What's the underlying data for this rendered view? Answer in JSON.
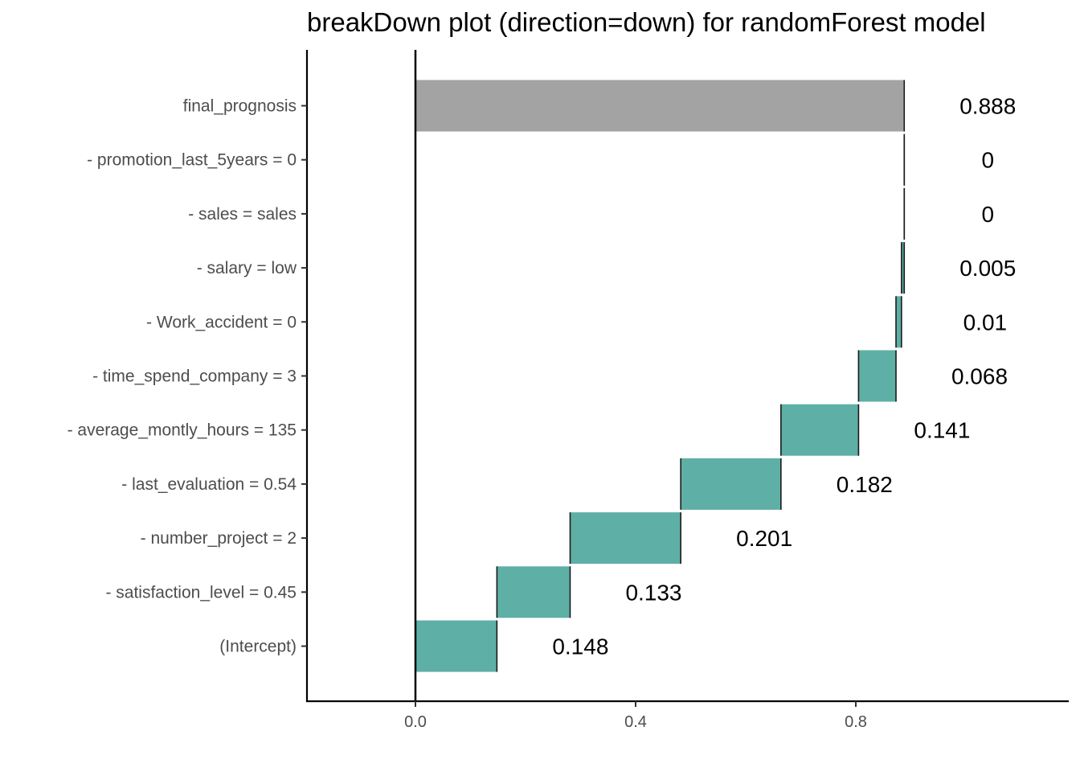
{
  "chart_data": {
    "type": "bar",
    "title": "breakDown plot  (direction=down) for randomForest model",
    "xlabel": "",
    "ylabel": "",
    "xlim": [
      -0.2,
      1.185
    ],
    "xticks": [
      0.0,
      0.4,
      0.8
    ],
    "xtick_labels": [
      "0.0",
      "0.4",
      "0.8"
    ],
    "grid": false,
    "baseline": 0,
    "bars": [
      {
        "label": "final_prognosis",
        "start": 0,
        "end": 0.888,
        "value_label": "0.888",
        "color": "#a3a3a3"
      },
      {
        "label": "- promotion_last_5years = 0",
        "start": 0.888,
        "end": 0.888,
        "value_label": "0",
        "color": "#5eafa6"
      },
      {
        "label": "- sales = sales",
        "start": 0.888,
        "end": 0.888,
        "value_label": "0",
        "color": "#5eafa6"
      },
      {
        "label": "- salary = low",
        "start": 0.883,
        "end": 0.888,
        "value_label": "0.005",
        "color": "#5eafa6"
      },
      {
        "label": "- Work_accident = 0",
        "start": 0.873,
        "end": 0.883,
        "value_label": "0.01",
        "color": "#5eafa6"
      },
      {
        "label": "- time_spend_company = 3",
        "start": 0.805,
        "end": 0.873,
        "value_label": "0.068",
        "color": "#5eafa6"
      },
      {
        "label": "- average_montly_hours = 135",
        "start": 0.664,
        "end": 0.805,
        "value_label": "0.141",
        "color": "#5eafa6"
      },
      {
        "label": "- last_evaluation = 0.54",
        "start": 0.482,
        "end": 0.664,
        "value_label": "0.182",
        "color": "#5eafa6"
      },
      {
        "label": "- number_project = 2",
        "start": 0.281,
        "end": 0.482,
        "value_label": "0.201",
        "color": "#5eafa6"
      },
      {
        "label": "- satisfaction_level = 0.45",
        "start": 0.148,
        "end": 0.281,
        "value_label": "0.133",
        "color": "#5eafa6"
      },
      {
        "label": "(Intercept)",
        "start": 0,
        "end": 0.148,
        "value_label": "0.148",
        "color": "#5eafa6"
      }
    ]
  }
}
